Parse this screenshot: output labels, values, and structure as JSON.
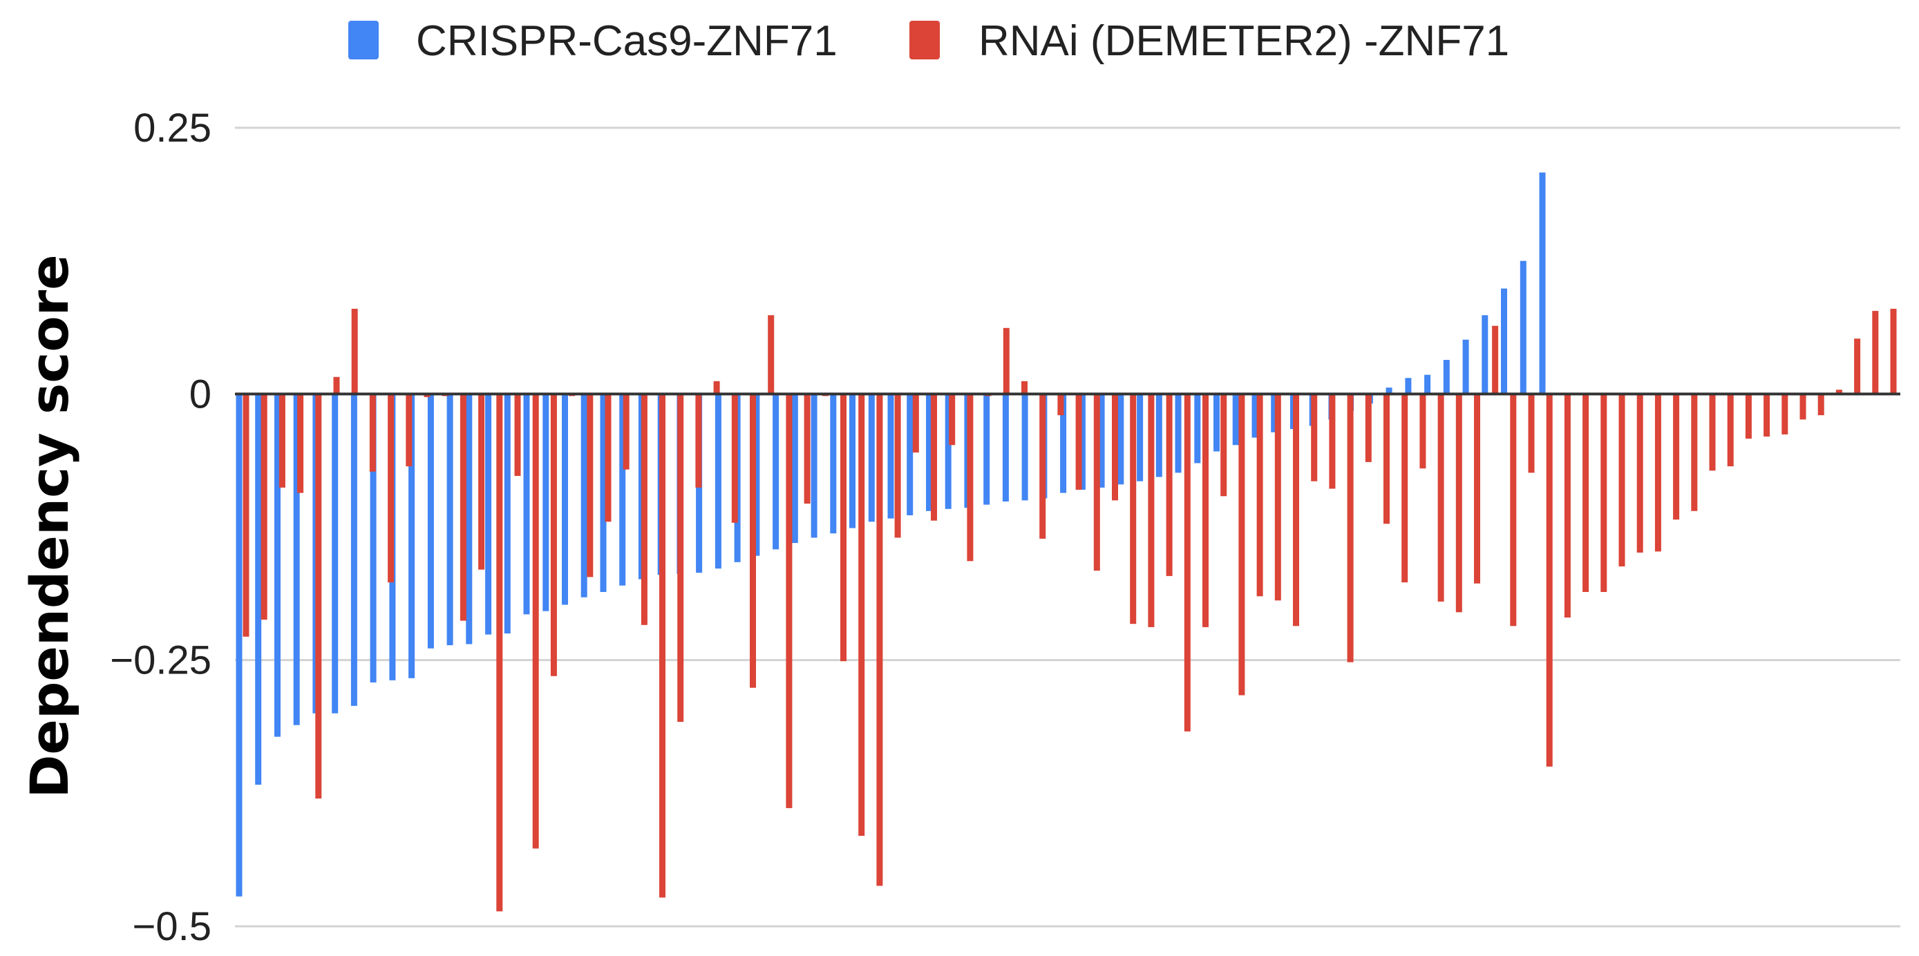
{
  "chart_data": {
    "type": "bar",
    "title": "",
    "xlabel": "",
    "ylabel": "Dependency score",
    "ylim": [
      -0.5,
      0.25
    ],
    "y_ticks": [
      0.25,
      0,
      -0.25,
      -0.5
    ],
    "y_tick_labels": [
      "0.25",
      "0",
      "−0.25",
      "−0.5"
    ],
    "grid": true,
    "legend_position": "top-center",
    "colors": {
      "crispr": "#4285F4",
      "rnai": "#DB4437",
      "grid": "#d3d3d3",
      "zero_line": "#333333"
    },
    "series": [
      {
        "name": "CRISPR-Cas9-ZNF71",
        "values": [
          -0.472,
          -0.367,
          -0.322,
          -0.311,
          -0.3,
          -0.3,
          -0.293,
          -0.271,
          -0.269,
          -0.267,
          -0.239,
          -0.236,
          -0.235,
          -0.226,
          -0.225,
          -0.207,
          -0.204,
          -0.198,
          -0.191,
          -0.186,
          -0.18,
          -0.174,
          -0.17,
          -0.169,
          -0.168,
          -0.164,
          -0.158,
          -0.152,
          -0.146,
          -0.14,
          -0.135,
          -0.131,
          -0.126,
          -0.12,
          -0.117,
          -0.114,
          -0.11,
          -0.108,
          -0.107,
          -0.104,
          -0.101,
          -0.1,
          -0.098,
          -0.093,
          -0.09,
          -0.088,
          -0.085,
          -0.082,
          -0.078,
          -0.074,
          -0.065,
          -0.054,
          -0.048,
          -0.041,
          -0.036,
          -0.033,
          -0.03,
          -0.024,
          -0.016,
          -0.009,
          0.006,
          0.015,
          0.018,
          0.032,
          0.051,
          0.074,
          0.099,
          0.125,
          0.208
        ]
      },
      {
        "name": "RNAi (DEMETER2) -ZNF71",
        "values": [
          -0.228,
          -0.212,
          -0.088,
          -0.093,
          -0.38,
          0.016,
          0.08,
          -0.073,
          -0.177,
          -0.068,
          -0.003,
          -0.002,
          -0.213,
          -0.165,
          -0.486,
          -0.077,
          -0.427,
          -0.265,
          -0.002,
          -0.172,
          -0.12,
          -0.071,
          -0.217,
          -0.473,
          -0.308,
          -0.088,
          0.012,
          -0.121,
          -0.276,
          0.074,
          -0.389,
          -0.103,
          -0.002,
          -0.251,
          -0.415,
          -0.462,
          -0.135,
          -0.055,
          -0.119,
          -0.048,
          -0.157,
          -0.002,
          0.062,
          0.012,
          -0.136,
          -0.02,
          -0.09,
          -0.166,
          -0.1,
          -0.216,
          -0.219,
          -0.171,
          -0.317,
          -0.219,
          -0.096,
          -0.283,
          -0.19,
          -0.194,
          -0.218,
          -0.082,
          -0.089,
          -0.252,
          -0.064,
          -0.122,
          -0.177,
          -0.07,
          -0.195,
          -0.205,
          -0.178,
          0.064,
          -0.218,
          -0.074,
          -0.35,
          -0.21,
          -0.186,
          -0.186,
          -0.162,
          -0.149,
          -0.148,
          -0.118,
          -0.11,
          -0.072,
          -0.068,
          -0.042,
          -0.04,
          -0.038,
          -0.024,
          -0.02,
          0.004,
          0.052,
          0.078,
          0.08
        ]
      }
    ]
  }
}
